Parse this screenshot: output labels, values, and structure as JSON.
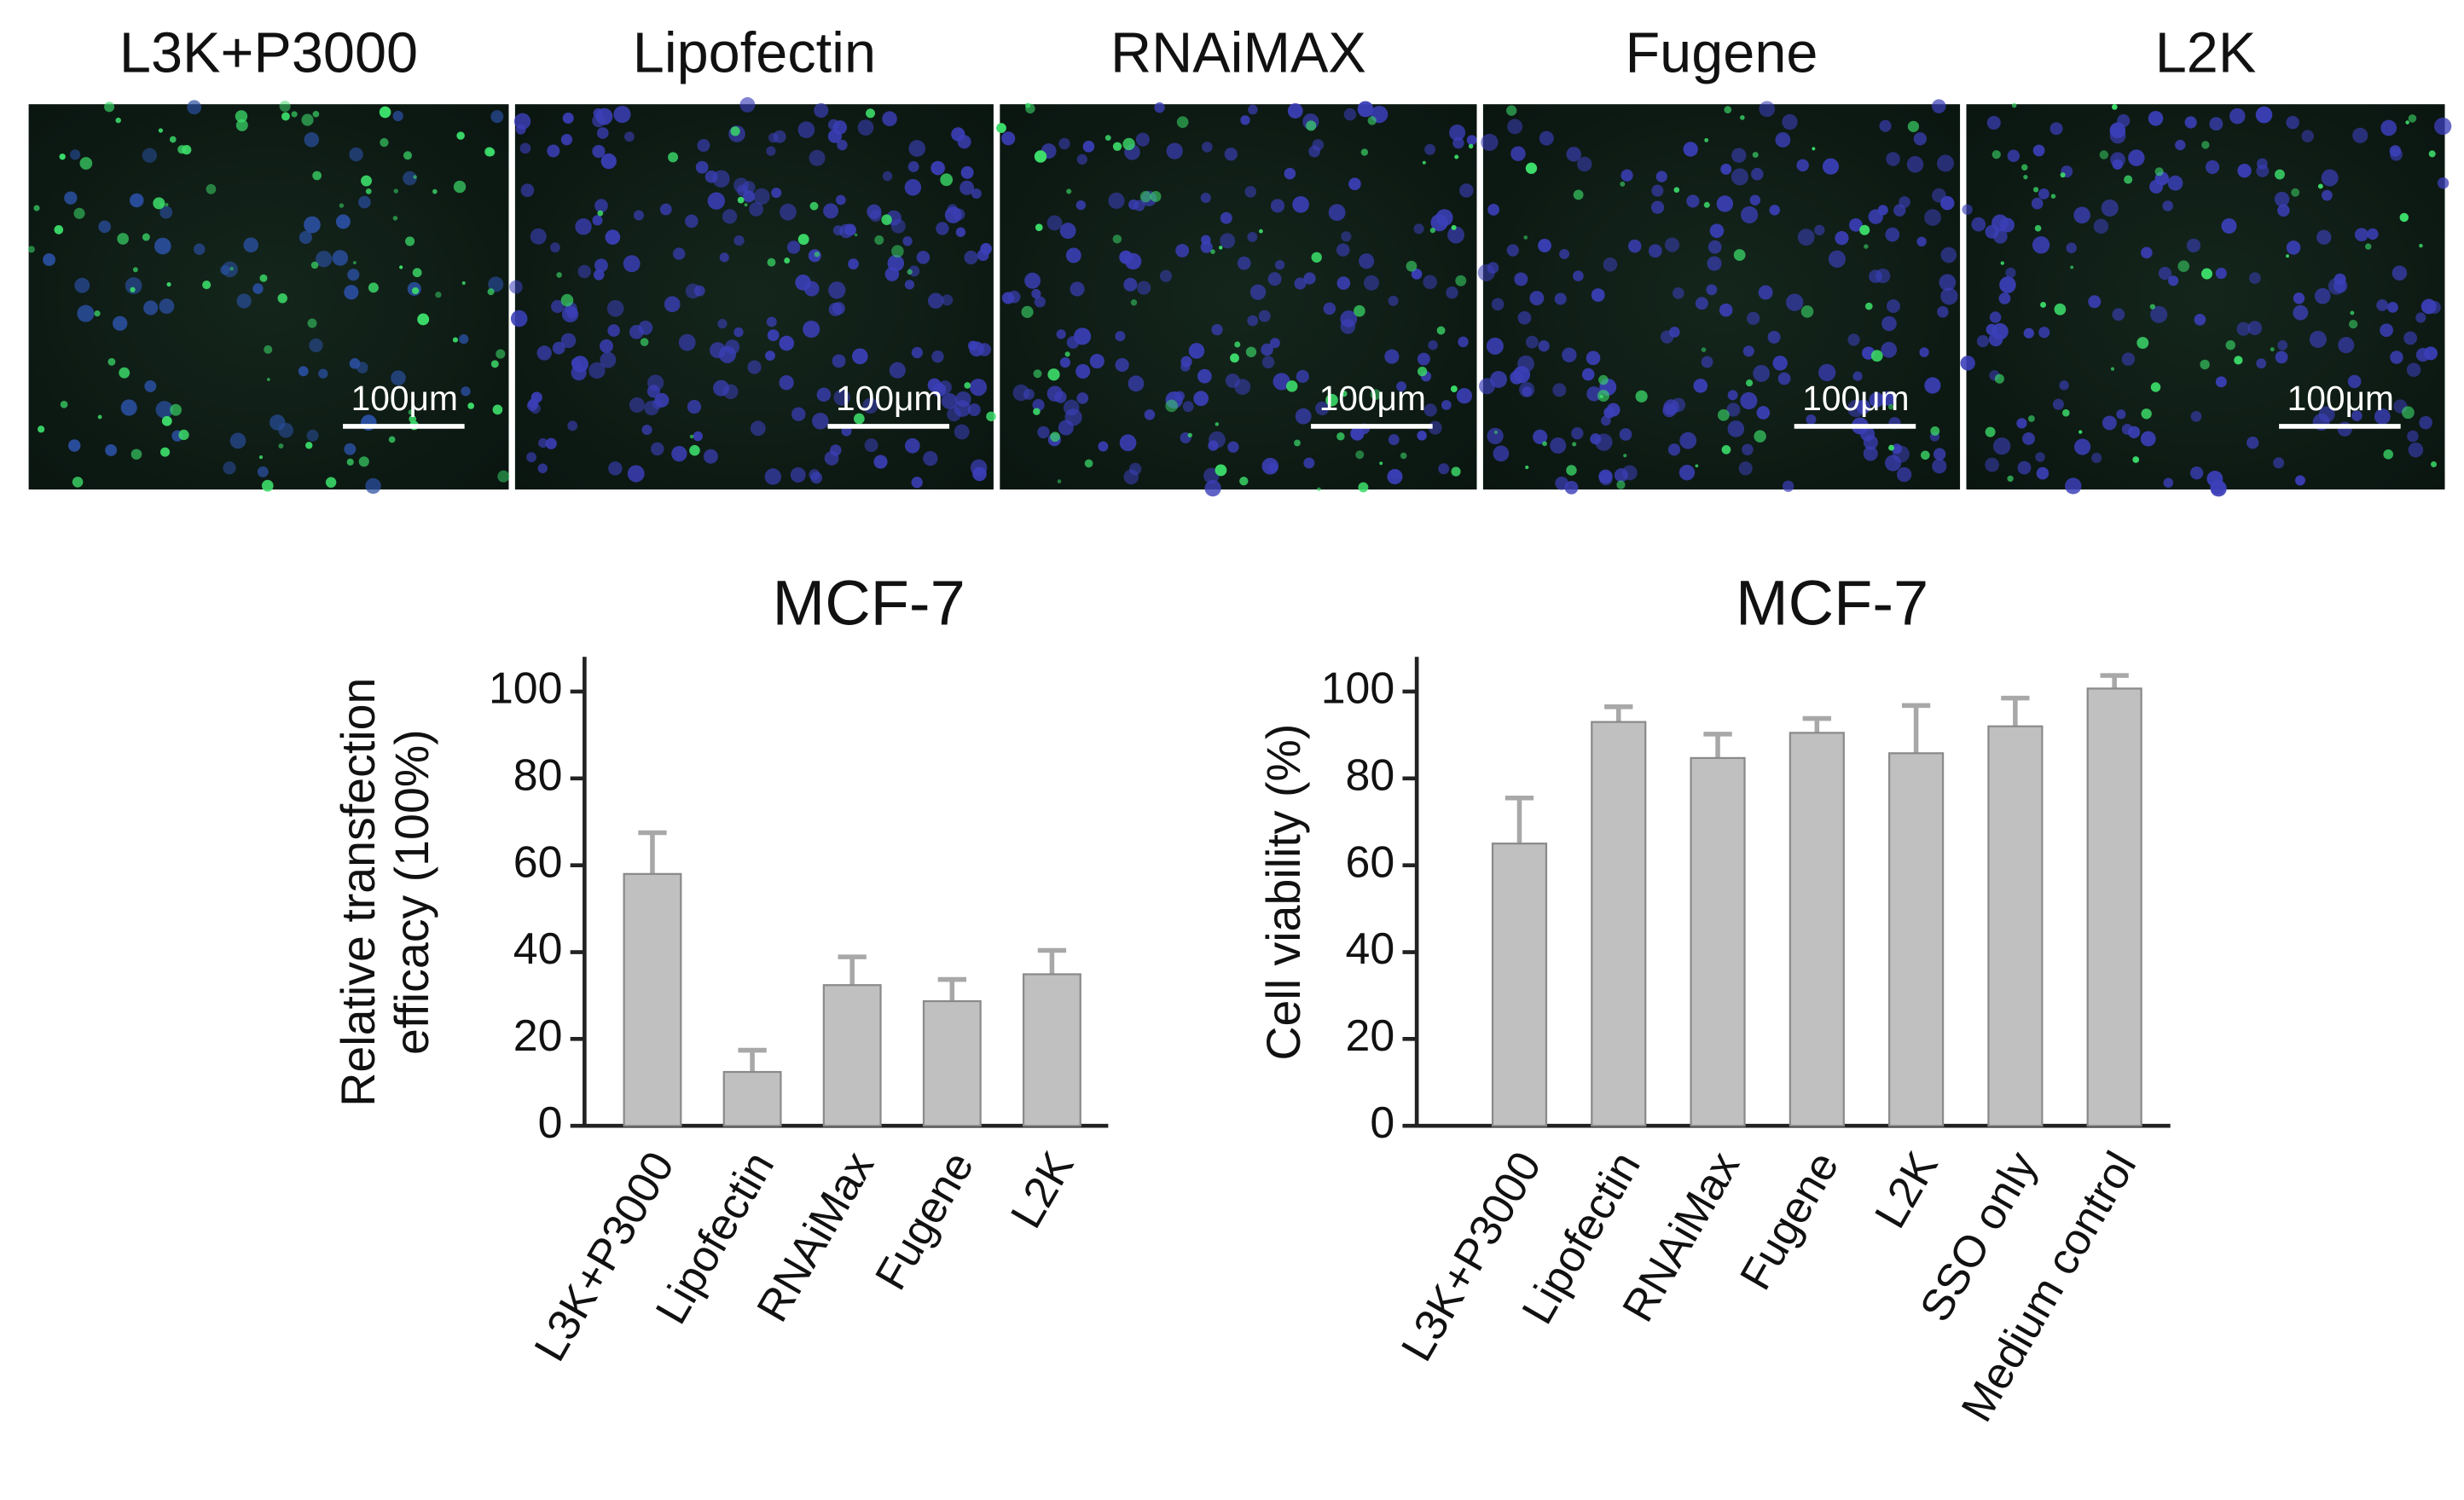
{
  "images": [
    {
      "title": "L3K+P3000",
      "scale_bar": "100μm"
    },
    {
      "title": "Lipofectin",
      "scale_bar": "100μm"
    },
    {
      "title": "RNAiMAX",
      "scale_bar": "100μm"
    },
    {
      "title": "Fugene",
      "scale_bar": "100μm"
    },
    {
      "title": "L2K",
      "scale_bar": "100μm"
    }
  ],
  "chart_data": [
    {
      "type": "bar",
      "title": "MCF-7",
      "ylabel": [
        "Relative transfection",
        "efficacy (100%)"
      ],
      "categories": [
        "L3K+P3000",
        "Lipofectin",
        "RNAiMax",
        "Fugene",
        "L2K"
      ],
      "values": [
        58,
        12.4,
        32.4,
        28.7,
        34.9
      ],
      "errors": [
        9.5,
        5,
        6.5,
        5,
        5.5
      ],
      "color": "#c0c0c0",
      "ylim": [
        0,
        108
      ],
      "yticks": [
        0,
        20,
        40,
        60,
        80,
        100
      ]
    },
    {
      "type": "bar",
      "title": "MCF-7",
      "ylabel": [
        "Cell viability (%)"
      ],
      "categories": [
        "L3K+P3000",
        "Lipofectin",
        "RNAiMax",
        "Fugene",
        "L2K",
        "SSO only",
        "Medium control"
      ],
      "values": [
        65,
        93,
        84.7,
        90.5,
        85.8,
        92,
        100.7
      ],
      "errors": [
        10.5,
        3.5,
        5.5,
        3.3,
        11,
        6.5,
        3
      ],
      "color": "#c0c0c0",
      "ylim": [
        0,
        108
      ],
      "yticks": [
        0,
        20,
        40,
        60,
        80,
        100
      ]
    }
  ]
}
